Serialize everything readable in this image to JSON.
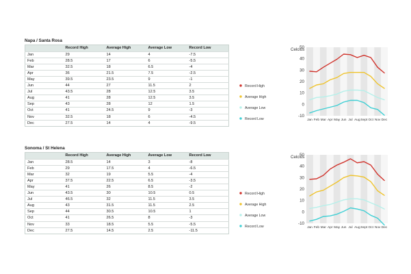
{
  "chart_data": [
    {
      "type": "line",
      "title": "Napa / Santa Rosa",
      "ylabel": "Celcius",
      "xlabel": "",
      "ylim": [
        -10,
        50
      ],
      "yticks": [
        -10,
        0,
        10,
        20,
        30,
        40,
        50
      ],
      "grid": true,
      "legend_position": "left",
      "categories": [
        "Jan",
        "Feb",
        "Mar",
        "Apr",
        "May",
        "Jun",
        "Jul",
        "Aug",
        "Sept",
        "Oct",
        "Nov",
        "Dec"
      ],
      "table_headers": [
        "",
        "Record High",
        "Average High",
        "Average Low",
        "Record Low"
      ],
      "table_months": [
        "Jan",
        "Feb",
        "Mar",
        "Apr",
        "May",
        "Jun",
        "Jul",
        "Aug",
        "Sep",
        "Oct",
        "Nov",
        "Dec"
      ],
      "series": [
        {
          "name": "Record High",
          "color": "#d0322b",
          "values": [
            29,
            28.5,
            32.5,
            36,
            39.5,
            44,
            43.5,
            41,
            43,
            41,
            32.5,
            27.5
          ]
        },
        {
          "name": "Average High",
          "color": "#efc32c",
          "values": [
            14,
            17,
            18,
            21.5,
            23.5,
            27,
            28,
            28,
            28,
            24.5,
            18,
            14
          ]
        },
        {
          "name": "Average Low",
          "color": "#b6f0ea",
          "values": [
            4,
            6,
            6.5,
            7.5,
            9,
            11.5,
            12.5,
            12.5,
            12,
            9,
            6,
            4
          ]
        },
        {
          "name": "Record Low",
          "color": "#3fcfd4",
          "values": [
            -7.5,
            -5.5,
            -4,
            -2.5,
            -1,
            2,
            3.5,
            3.5,
            1.5,
            -3,
            -4.5,
            -9.5
          ]
        }
      ]
    },
    {
      "type": "line",
      "title": "Sonoma / St Helena",
      "ylabel": "Celcius",
      "xlabel": "",
      "ylim": [
        -10,
        50
      ],
      "yticks": [
        -10,
        0,
        10,
        20,
        30,
        40,
        50
      ],
      "grid": true,
      "legend_position": "left",
      "categories": [
        "Jan",
        "Feb",
        "Mar",
        "Apr",
        "May",
        "Jun",
        "Jul",
        "Aug",
        "Sept",
        "Oct",
        "Nov",
        "Dec"
      ],
      "table_headers": [
        "",
        "Record High",
        "Average High",
        "Average Low",
        "Record Low"
      ],
      "table_months": [
        "Jan",
        "Feb",
        "Mar",
        "Apr",
        "May",
        "Jun",
        "Jul",
        "Aug",
        "Sep",
        "Oct",
        "Nov",
        "Dec"
      ],
      "series": [
        {
          "name": "Record High",
          "color": "#d0322b",
          "values": [
            28.5,
            29,
            32,
            37.5,
            41,
            43.5,
            46.5,
            43,
            44,
            41,
            33,
            27.5
          ]
        },
        {
          "name": "Average High",
          "color": "#efc32c",
          "values": [
            14,
            17.5,
            19,
            22.5,
            26,
            30,
            32,
            31.5,
            30.5,
            26.5,
            18.5,
            14.5
          ]
        },
        {
          "name": "Average Low",
          "color": "#b6f0ea",
          "values": [
            3,
            4,
            5.5,
            6.5,
            8.5,
            10.5,
            11.5,
            11.5,
            10.5,
            8,
            5.5,
            2.5
          ]
        },
        {
          "name": "Record Low",
          "color": "#3fcfd4",
          "values": [
            -8,
            -6.5,
            -4,
            -3.5,
            -2,
            0.5,
            3.5,
            2.5,
            1,
            -3,
            -5.5,
            -11.5
          ]
        }
      ]
    }
  ]
}
